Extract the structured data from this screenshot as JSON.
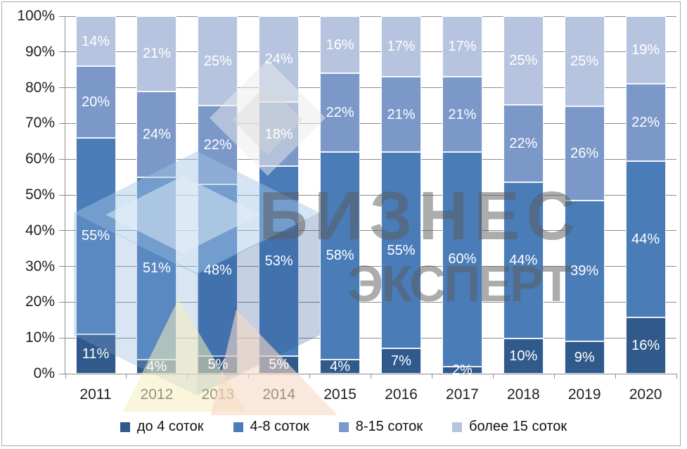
{
  "chart_data": {
    "type": "bar",
    "subtype": "stacked-100-percent",
    "categories": [
      "2011",
      "2012",
      "2013",
      "2014",
      "2015",
      "2016",
      "2017",
      "2018",
      "2019",
      "2020"
    ],
    "series": [
      {
        "name": "до 4 соток",
        "color": "#305A8C",
        "values": [
          11,
          4,
          5,
          5,
          4,
          7,
          2,
          10,
          9,
          16
        ]
      },
      {
        "name": "4-8 соток",
        "color": "#4A7CB8",
        "values": [
          55,
          51,
          48,
          53,
          58,
          55,
          60,
          44,
          39,
          44
        ]
      },
      {
        "name": "8-15 соток",
        "color": "#7B98C9",
        "values": [
          20,
          24,
          22,
          18,
          22,
          21,
          21,
          22,
          26,
          22
        ]
      },
      {
        "name": "более 15 соток",
        "color": "#B7C4DF",
        "values": [
          14,
          21,
          25,
          24,
          16,
          17,
          17,
          25,
          25,
          19
        ]
      }
    ],
    "y_tick_labels": [
      "100%",
      "90%",
      "80%",
      "70%",
      "60%",
      "50%",
      "40%",
      "30%",
      "20%",
      "10%",
      "0%"
    ],
    "ylim": [
      0,
      100
    ],
    "grid": true,
    "grid_color": "#8c8c8c",
    "data_label_suffix": "%",
    "data_label_color": "#ffffff",
    "legend_position": "bottom"
  },
  "watermark": {
    "line1": "БИЗНЕС",
    "line2": "ЭКСПЕРТ"
  }
}
